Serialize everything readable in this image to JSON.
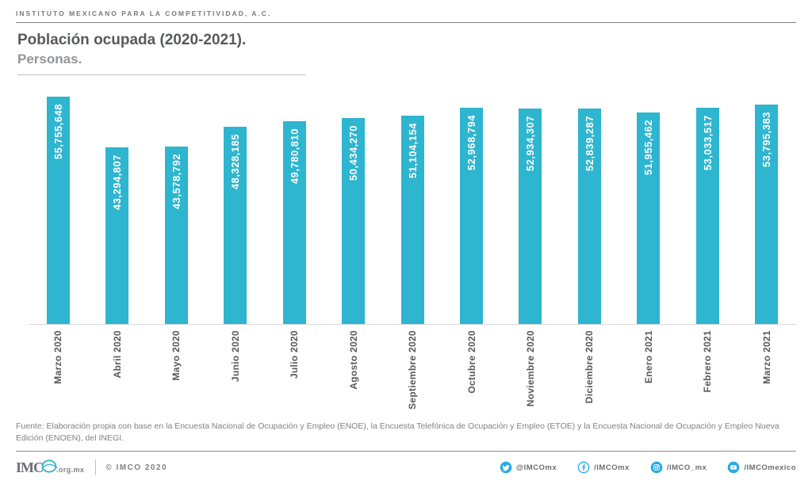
{
  "header": {
    "org": "INSTITUTO MEXICANO PARA LA COMPETITIVIDAD, A.C."
  },
  "chart_data": {
    "type": "bar",
    "title": "Población ocupada (2020-2021).",
    "subtitle": "Personas.",
    "categories": [
      "Marzo 2020",
      "Abril 2020",
      "Mayo 2020",
      "Junio 2020",
      "Julio 2020",
      "Agosto 2020",
      "Septiembre 2020",
      "Octubre 2020",
      "Noviembre 2020",
      "Diciembre 2020",
      "Enero 2021",
      "Febrero 2021",
      "Marzo 2021"
    ],
    "values": [
      55755648,
      43294807,
      43578792,
      48328185,
      49780810,
      50434270,
      51104154,
      52968794,
      52934307,
      52839287,
      51955462,
      53033517,
      53795383
    ],
    "value_labels": [
      "55,755,648",
      "43,294,807",
      "43,578,792",
      "48,328,185",
      "49,780,810",
      "50,434,270",
      "51,104,154",
      "52,968,794",
      "52,934,307",
      "52,839,287",
      "51,955,462",
      "53,033,517",
      "53,795,383"
    ],
    "ylim": [
      0,
      55755648
    ],
    "xlabel": "",
    "ylabel": "",
    "grid": false,
    "legend_position": "none",
    "bar_color": "#2EB5CF",
    "value_label_color": "#FFFFFF",
    "value_label_rotation": -90,
    "tick_label_rotation": -90
  },
  "footer": {
    "source": "Fuente: Elaboración propia con base en la Encuesta Nacional de Ocupación y Empleo (ENOE), la Encuesta Telefónica de Ocupación y Empleo (ETOE) y la Encuesta Nacional de Ocupación y Empleo Nueva Edición (ENOEN), del INEGI.",
    "logo": {
      "wordmark": "IMC",
      "suffix": ".org.mx"
    },
    "copyright": "© IMCO 2020",
    "social": [
      {
        "icon": "twitter-icon",
        "label": "@IMCOmx"
      },
      {
        "icon": "facebook-icon",
        "label": "/IMCOmx"
      },
      {
        "icon": "instagram-icon",
        "label": "/IMCO_mx"
      },
      {
        "icon": "youtube-icon",
        "label": "/IMCOmexico"
      }
    ]
  },
  "colors": {
    "accent": "#2EB5CF",
    "social_blue": "#29ABE2",
    "title_gray": "#58595B",
    "subtitle_gray": "#939598",
    "text_gray": "#808285"
  }
}
